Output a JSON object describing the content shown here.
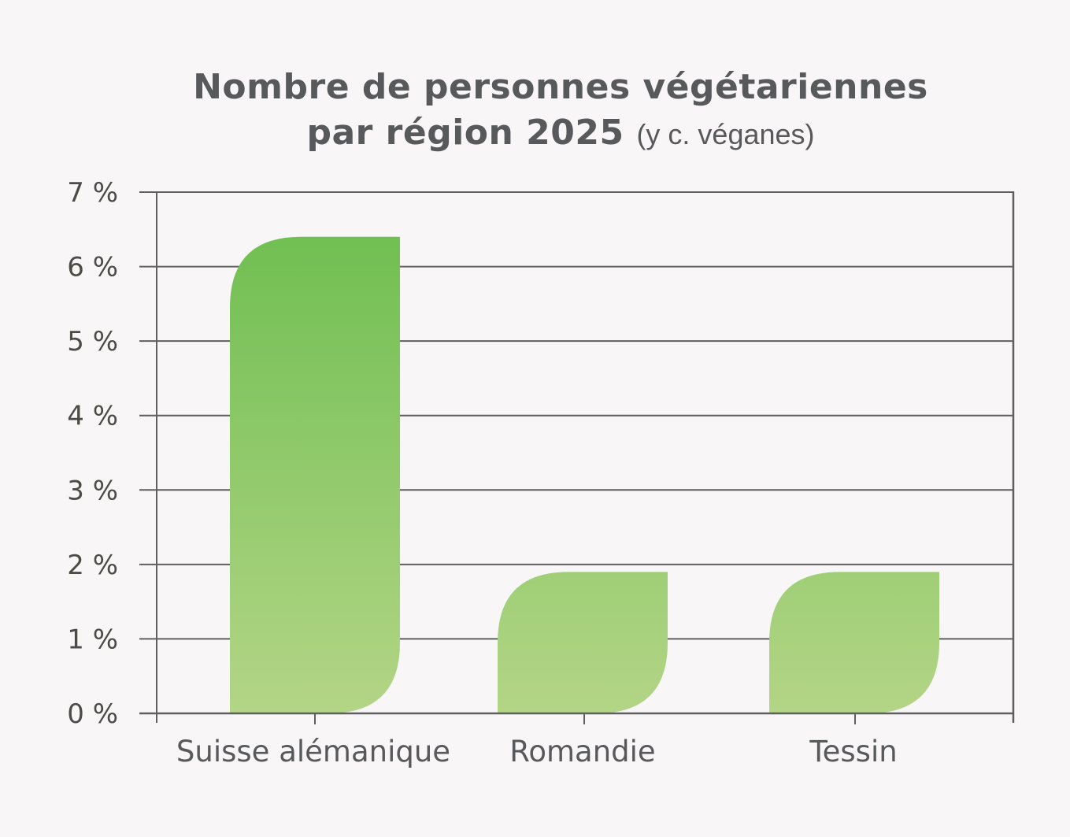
{
  "title": {
    "line1": "Nombre de personnes végétariennes",
    "line2_main": "par région 2025",
    "line2_sub": "(y c. véganes)"
  },
  "colors": {
    "background": "#f8f6f7",
    "axis": "#5f5f5f",
    "bar_top": "#6bbd4e",
    "bar_bottom": "#b3d586",
    "text": "#58595b"
  },
  "chart_data": {
    "type": "bar",
    "title": "Nombre de personnes végétariennes par région 2025 (y c. véganes)",
    "categories": [
      "Suisse alémanique",
      "Romandie",
      "Tessin"
    ],
    "values": [
      6.4,
      1.9,
      1.9
    ],
    "unit": "%",
    "xlabel": "",
    "ylabel": "",
    "ylim": [
      0,
      7
    ],
    "yticks": [
      "0 %",
      "1 %",
      "2 %",
      "3 %",
      "4 %",
      "5 %",
      "6 %",
      "7 %"
    ],
    "grid": true,
    "legend": null
  }
}
